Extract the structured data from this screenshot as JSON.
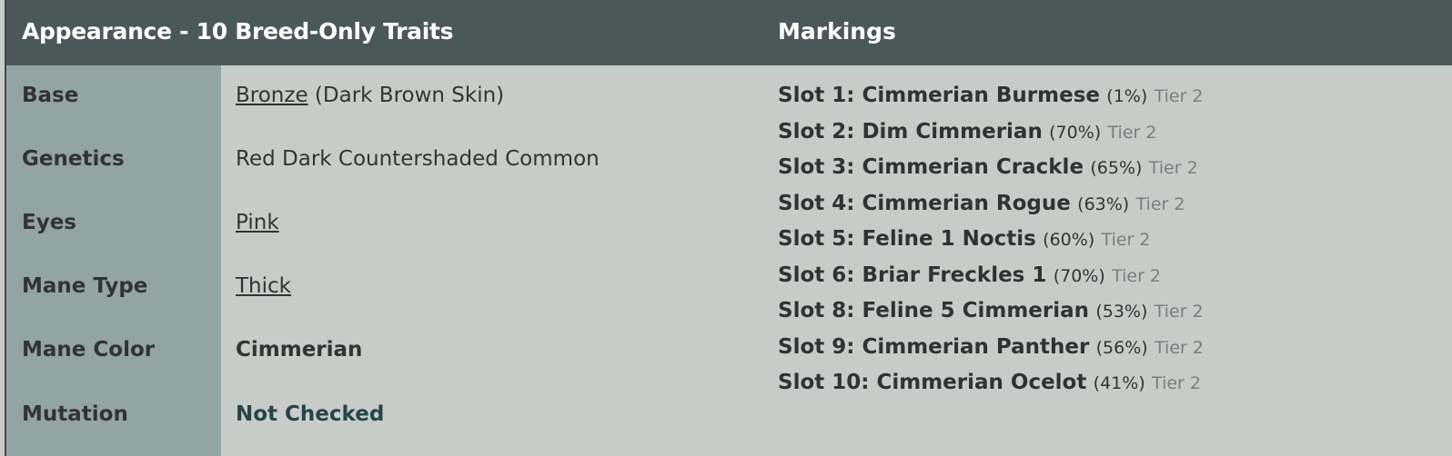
{
  "appearance": {
    "title": "Appearance - 10 Breed-Only Traits",
    "rows": [
      {
        "label": "Base",
        "link": "Bronze",
        "extra": " (Dark Brown Skin)"
      },
      {
        "label": "Genetics",
        "text": "Red Dark Countershaded Common"
      },
      {
        "label": "Eyes",
        "link": "Pink"
      },
      {
        "label": "Mane Type",
        "link": "Thick"
      },
      {
        "label": "Mane Color",
        "bold": "Cimmerian"
      },
      {
        "label": "Mutation",
        "status": "Not Checked"
      }
    ]
  },
  "markings": {
    "title": "Markings",
    "items": [
      {
        "name": "Slot 1: Cimmerian Burmese",
        "percent": "(1%)",
        "tier": "Tier 2"
      },
      {
        "name": "Slot 2: Dim Cimmerian",
        "percent": "(70%)",
        "tier": "Tier 2"
      },
      {
        "name": "Slot 3: Cimmerian Crackle",
        "percent": "(65%)",
        "tier": "Tier 2"
      },
      {
        "name": "Slot 4: Cimmerian Rogue",
        "percent": "(63%)",
        "tier": "Tier 2"
      },
      {
        "name": "Slot 5: Feline 1 Noctis",
        "percent": "(60%)",
        "tier": "Tier 2"
      },
      {
        "name": "Slot 6: Briar Freckles 1",
        "percent": "(70%)",
        "tier": "Tier 2"
      },
      {
        "name": "Slot 8: Feline 5 Cimmerian",
        "percent": "(53%)",
        "tier": "Tier 2"
      },
      {
        "name": "Slot 9: Cimmerian Panther",
        "percent": "(56%)",
        "tier": "Tier 2"
      },
      {
        "name": "Slot 10: Cimmerian Ocelot",
        "percent": "(41%)",
        "tier": "Tier 2"
      }
    ]
  },
  "colors": {
    "header": "#4a5859",
    "label_column": "#93a5a3",
    "background": "#c8ccc8",
    "status": "#27444a"
  }
}
